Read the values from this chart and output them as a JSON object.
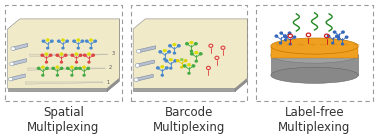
{
  "panel1_title": "Spatial\nMultiplexing",
  "panel2_title": "Barcode\nMultiplexing",
  "panel3_title": "Label-free\nMultiplexing",
  "bg_color": "#ffffff",
  "text_color": "#333333",
  "text_fontsize": 8.5,
  "dashed_border": "#999999",
  "chip_gray": "#b8b8b8",
  "chip_gray_side": "#909090",
  "chip_gray_front": "#a0a0a0",
  "chip_cream": "#f0eac8",
  "chip_cream_dark": "#e0d8b0",
  "tube_color": "#b0b8c8",
  "gold_top": "#f0a020",
  "gold_body": "#e09010",
  "gray_disk": "#909090",
  "ab_blue": "#4a88cc",
  "ab_red": "#dd4444",
  "ab_green": "#44aa44",
  "ab_yellow": "#ddcc00",
  "ab_orange": "#dd7722"
}
